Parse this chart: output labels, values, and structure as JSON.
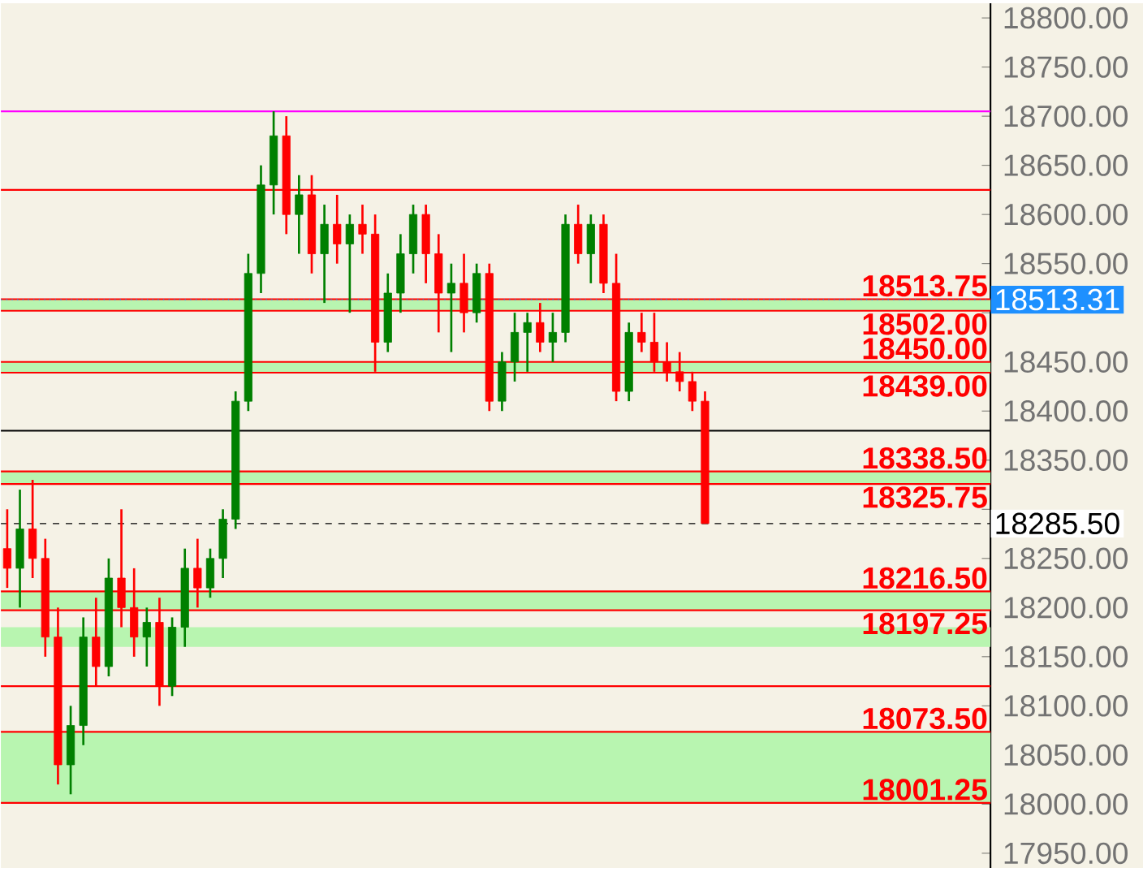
{
  "chart_data": {
    "type": "candlestick",
    "categories": [
      null,
      null,
      null,
      null,
      null,
      null,
      null,
      null,
      null,
      null,
      null,
      null,
      null,
      null,
      null,
      null,
      null,
      null,
      null,
      null,
      null,
      null,
      null,
      null,
      null,
      null,
      null,
      null,
      null,
      null,
      null,
      null,
      null,
      null,
      null,
      null,
      null,
      null,
      null,
      null,
      null,
      null,
      null,
      null,
      null,
      null,
      null,
      null,
      null,
      null,
      null,
      null,
      null,
      null,
      null,
      null,
      null,
      null,
      null,
      null,
      null,
      null,
      null,
      null,
      null,
      null,
      null,
      null,
      null,
      null,
      null,
      null,
      null,
      null,
      null,
      null,
      null,
      null
    ],
    "ohlc": [
      [
        18260,
        18300,
        18220,
        18240
      ],
      [
        18240,
        18320,
        18200,
        18280
      ],
      [
        18280,
        18330,
        18230,
        18250
      ],
      [
        18250,
        18270,
        18150,
        18170
      ],
      [
        18170,
        18200,
        18020,
        18040
      ],
      [
        18040,
        18100,
        18010,
        18080
      ],
      [
        18080,
        18190,
        18060,
        18170
      ],
      [
        18170,
        18210,
        18120,
        18140
      ],
      [
        18140,
        18250,
        18130,
        18230
      ],
      [
        18230,
        18300,
        18180,
        18200
      ],
      [
        18200,
        18240,
        18150,
        18170
      ],
      [
        18170,
        18200,
        18140,
        18185
      ],
      [
        18185,
        18210,
        18100,
        18120
      ],
      [
        18120,
        18190,
        18110,
        18180
      ],
      [
        18180,
        18260,
        18160,
        18240
      ],
      [
        18240,
        18270,
        18200,
        18220
      ],
      [
        18220,
        18260,
        18210,
        18250
      ],
      [
        18250,
        18300,
        18230,
        18290
      ],
      [
        18290,
        18420,
        18280,
        18410
      ],
      [
        18410,
        18560,
        18400,
        18540
      ],
      [
        18540,
        18650,
        18520,
        18630
      ],
      [
        18630,
        18705,
        18600,
        18680
      ],
      [
        18680,
        18700,
        18580,
        18600
      ],
      [
        18600,
        18640,
        18560,
        18620
      ],
      [
        18620,
        18640,
        18540,
        18560
      ],
      [
        18560,
        18610,
        18510,
        18590
      ],
      [
        18590,
        18620,
        18550,
        18570
      ],
      [
        18570,
        18600,
        18500,
        18590
      ],
      [
        18590,
        18610,
        18560,
        18580
      ],
      [
        18580,
        18600,
        18440,
        18470
      ],
      [
        18470,
        18540,
        18460,
        18520
      ],
      [
        18520,
        18580,
        18500,
        18560
      ],
      [
        18560,
        18610,
        18540,
        18600
      ],
      [
        18600,
        18610,
        18530,
        18560
      ],
      [
        18560,
        18580,
        18480,
        18520
      ],
      [
        18520,
        18550,
        18460,
        18530
      ],
      [
        18530,
        18560,
        18480,
        18500
      ],
      [
        18500,
        18550,
        18490,
        18540
      ],
      [
        18540,
        18550,
        18400,
        18410
      ],
      [
        18410,
        18460,
        18400,
        18450
      ],
      [
        18450,
        18500,
        18430,
        18480
      ],
      [
        18480,
        18500,
        18440,
        18490
      ],
      [
        18490,
        18510,
        18460,
        18470
      ],
      [
        18470,
        18500,
        18450,
        18480
      ],
      [
        18480,
        18600,
        18470,
        18590
      ],
      [
        18590,
        18610,
        18550,
        18560
      ],
      [
        18560,
        18600,
        18530,
        18590
      ],
      [
        18590,
        18600,
        18520,
        18530
      ],
      [
        18530,
        18560,
        18410,
        18420
      ],
      [
        18420,
        18490,
        18410,
        18480
      ],
      [
        18480,
        18500,
        18460,
        18470
      ],
      [
        18470,
        18500,
        18440,
        18450
      ],
      [
        18450,
        18470,
        18430,
        18440
      ],
      [
        18440,
        18460,
        18420,
        18430
      ],
      [
        18430,
        18440,
        18400,
        18410
      ],
      [
        18410,
        18420,
        18285.5,
        18285.5
      ],
      null,
      null,
      null,
      null,
      null,
      null,
      null,
      null,
      null,
      null,
      null,
      null,
      null,
      null,
      null,
      null,
      null,
      null,
      null,
      null,
      null,
      null
    ],
    "colors": [
      "#ff0000",
      "#008000",
      "#ff0000",
      "#ff0000",
      "#ff0000",
      "#008000",
      "#008000",
      "#ff0000",
      "#008000",
      "#ff0000",
      "#ff0000",
      "#008000",
      "#ff0000",
      "#008000",
      "#008000",
      "#ff0000",
      "#008000",
      "#008000",
      "#008000",
      "#008000",
      "#008000",
      "#008000",
      "#ff0000",
      "#008000",
      "#ff0000",
      "#008000",
      "#ff0000",
      "#008000",
      "#ff0000",
      "#ff0000",
      "#008000",
      "#008000",
      "#008000",
      "#ff0000",
      "#ff0000",
      "#008000",
      "#ff0000",
      "#008000",
      "#ff0000",
      "#008000",
      "#008000",
      "#008000",
      "#ff0000",
      "#008000",
      "#008000",
      "#ff0000",
      "#008000",
      "#ff0000",
      "#ff0000",
      "#008000",
      "#ff0000",
      "#ff0000",
      "#ff0000",
      "#ff0000",
      "#ff0000",
      "#ff0000",
      null,
      null,
      null,
      null,
      null,
      null,
      null,
      null,
      null,
      null,
      null,
      null,
      null,
      null,
      null,
      null,
      null,
      null,
      null,
      null,
      null,
      null
    ],
    "ylim": [
      17935,
      18815
    ],
    "yticks": [
      {
        "value": 17950,
        "label": "17950.00"
      },
      {
        "value": 18000,
        "label": "18000.00"
      },
      {
        "value": 18050,
        "label": "18050.00"
      },
      {
        "value": 18100,
        "label": "18100.00"
      },
      {
        "value": 18150,
        "label": "18150.00"
      },
      {
        "value": 18200,
        "label": "18200.00"
      },
      {
        "value": 18250,
        "label": "18250.00"
      },
      {
        "value": 18300,
        "label": null
      },
      {
        "value": 18350,
        "label": "18350.00"
      },
      {
        "value": 18400,
        "label": "18400.00"
      },
      {
        "value": 18450,
        "label": "18450.00"
      },
      {
        "value": 18500,
        "label": null
      },
      {
        "value": 18550,
        "label": "18550.00"
      },
      {
        "value": 18600,
        "label": "18600.00"
      },
      {
        "value": 18650,
        "label": "18650.00"
      },
      {
        "value": 18700,
        "label": "18700.00"
      },
      {
        "value": 18750,
        "label": "18750.00"
      },
      {
        "value": 18800,
        "label": "18800.00"
      }
    ],
    "bands": [
      {
        "axis": "y",
        "from": 18502,
        "to": 18513.75,
        "color": "#b8f5b0"
      },
      {
        "axis": "y",
        "from": 18439,
        "to": 18450,
        "color": "#b8f5b0"
      },
      {
        "axis": "y",
        "from": 18325.75,
        "to": 18338.5,
        "color": "#b8f5b0"
      },
      {
        "axis": "y",
        "from": 18197.25,
        "to": 18216.5,
        "color": "#b8f5b0"
      },
      {
        "axis": "y",
        "from": 18160,
        "to": 18180,
        "color": "#b8f5b0"
      },
      {
        "axis": "y",
        "from": 18001.25,
        "to": 18073.5,
        "color": "#b8f5b0"
      }
    ],
    "ref_lines": [
      {
        "axis": "y",
        "value": 18513.75,
        "label": "18513.75",
        "color": "#ff0000"
      },
      {
        "axis": "y",
        "value": 18502,
        "label": "18502.00",
        "color": "#ff0000"
      },
      {
        "axis": "y",
        "value": 18450,
        "label": "18450.00",
        "color": "#ff0000"
      },
      {
        "axis": "y",
        "value": 18439,
        "label": "18439.00",
        "color": "#ff0000"
      },
      {
        "axis": "y",
        "value": 18338.5,
        "label": "18338.50",
        "color": "#ff0000"
      },
      {
        "axis": "y",
        "value": 18325.75,
        "label": "18325.75",
        "color": "#ff0000"
      },
      {
        "axis": "y",
        "value": 18216.5,
        "label": "18216.50",
        "color": "#ff0000"
      },
      {
        "axis": "y",
        "value": 18197.25,
        "label": "18197.25",
        "color": "#ff0000"
      },
      {
        "axis": "y",
        "value": 18073.5,
        "label": "18073.50",
        "color": "#ff0000"
      },
      {
        "axis": "y",
        "value": 18001.25,
        "label": "18001.25",
        "color": "#ff0000"
      },
      {
        "axis": "y",
        "value": 18705,
        "color": "#ff00ff"
      },
      {
        "axis": "y",
        "value": 18380,
        "color": "#000000"
      },
      {
        "axis": "y",
        "value": 18625,
        "color": "#ff0000"
      },
      {
        "axis": "y",
        "value": 18120,
        "color": "#ff0000"
      },
      {
        "axis": "y",
        "value": 18513.31,
        "label": "18513.31",
        "color": "#1e90ff",
        "line_style": "dotted"
      },
      {
        "axis": "y",
        "value": 18285.5,
        "label": "18285.50",
        "color": "#000000",
        "line_style": "dashed"
      }
    ],
    "grid": false
  }
}
